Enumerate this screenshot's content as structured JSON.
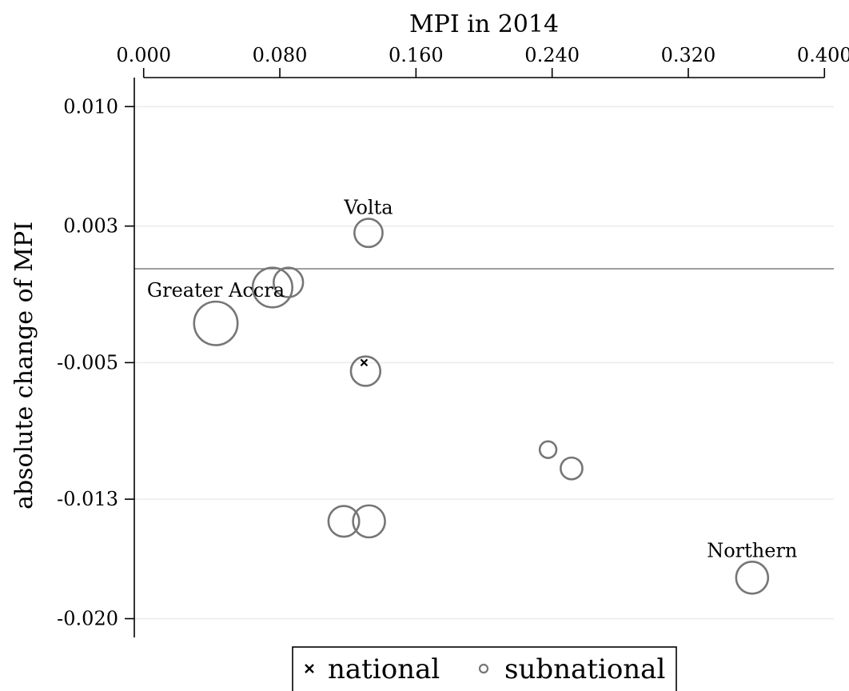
{
  "chart_data": {
    "type": "scatter",
    "title": "",
    "xlabel": "MPI in 2014",
    "ylabel": "absolute change of MPI",
    "x_axis_position": "top",
    "xlim": [
      -0.0055,
      0.4055
    ],
    "ylim": [
      -0.0211,
      0.0117
    ],
    "x_ticks": [
      0.0,
      0.08,
      0.16,
      0.24,
      0.32,
      0.4
    ],
    "x_tick_labels": [
      "0.000",
      "0.080",
      "0.160",
      "0.240",
      "0.320",
      "0.400"
    ],
    "y_ticks": [
      0.01,
      0.003,
      -0.005,
      -0.013,
      -0.02
    ],
    "y_tick_labels": [
      "0.010",
      "0.003",
      "-0.005",
      "-0.013",
      "-0.020"
    ],
    "grid": "horizontal",
    "reference_line": {
      "y": 0.0005
    },
    "legend": {
      "position": "bottom",
      "entries": [
        {
          "label": "national",
          "marker": "x"
        },
        {
          "label": "subnational",
          "marker": "circle"
        }
      ]
    },
    "series": [
      {
        "name": "national",
        "marker": "x",
        "color": "#000000",
        "points": [
          {
            "x": 0.1295,
            "y": -0.005
          }
        ]
      },
      {
        "name": "subnational",
        "marker": "circle",
        "color": "#767676",
        "points": [
          {
            "x": 0.1321,
            "y": 0.0026,
            "size": 1.1,
            "label": "Volta"
          },
          {
            "x": 0.085,
            "y": -0.0003,
            "size": 1.15
          },
          {
            "x": 0.0757,
            "y": -0.0006,
            "size": 1.55
          },
          {
            "x": 0.0424,
            "y": -0.0027,
            "size": 1.7,
            "label": "Greater Accra"
          },
          {
            "x": 0.1304,
            "y": -0.0055,
            "size": 1.15
          },
          {
            "x": 0.2376,
            "y": -0.0101,
            "size": 0.65
          },
          {
            "x": 0.2514,
            "y": -0.0112,
            "size": 0.85
          },
          {
            "x": 0.1176,
            "y": -0.0143,
            "size": 1.2
          },
          {
            "x": 0.1324,
            "y": -0.0143,
            "size": 1.25
          },
          {
            "x": 0.3575,
            "y": -0.0176,
            "size": 1.25,
            "label": "Northern"
          }
        ]
      }
    ]
  }
}
